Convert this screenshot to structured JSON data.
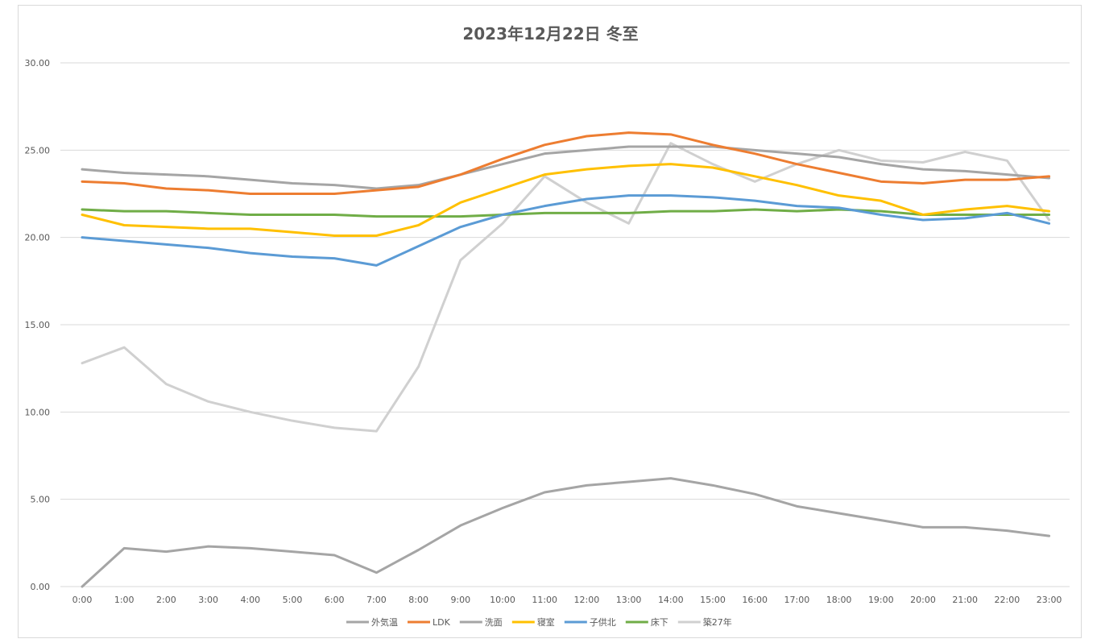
{
  "chart_data": {
    "type": "line",
    "title": "2023年12月22日 冬至",
    "xlabel": "",
    "ylabel": "",
    "ylim": [
      0,
      30
    ],
    "yticks": [
      "0.00",
      "5.00",
      "10.00",
      "15.00",
      "20.00",
      "25.00",
      "30.00"
    ],
    "categories": [
      "0:00",
      "1:00",
      "2:00",
      "3:00",
      "4:00",
      "5:00",
      "6:00",
      "7:00",
      "8:00",
      "9:00",
      "10:00",
      "11:00",
      "12:00",
      "13:00",
      "14:00",
      "15:00",
      "16:00",
      "17:00",
      "18:00",
      "19:00",
      "20:00",
      "21:00",
      "22:00",
      "23:00"
    ],
    "grid": true,
    "legend_position": "bottom",
    "series": [
      {
        "name": "外気温",
        "color": "#a5a5a5",
        "values": [
          0.0,
          2.2,
          2.0,
          2.3,
          2.2,
          2.0,
          1.8,
          0.8,
          2.1,
          3.5,
          4.5,
          5.4,
          5.8,
          6.0,
          6.2,
          5.8,
          5.3,
          4.6,
          4.2,
          3.8,
          3.4,
          3.4,
          3.2,
          2.9
        ]
      },
      {
        "name": "LDK",
        "color": "#ed7d31",
        "values": [
          23.2,
          23.1,
          22.8,
          22.7,
          22.5,
          22.5,
          22.5,
          22.7,
          22.9,
          23.6,
          24.5,
          25.3,
          25.8,
          26.0,
          25.9,
          25.3,
          24.8,
          24.2,
          23.7,
          23.2,
          23.1,
          23.3,
          23.3,
          23.5
        ]
      },
      {
        "name": "洗面",
        "color": "#a5a5a5",
        "values": [
          23.9,
          23.7,
          23.6,
          23.5,
          23.3,
          23.1,
          23.0,
          22.8,
          23.0,
          23.6,
          24.2,
          24.8,
          25.0,
          25.2,
          25.2,
          25.2,
          25.0,
          24.8,
          24.6,
          24.2,
          23.9,
          23.8,
          23.6,
          23.4
        ]
      },
      {
        "name": "寝室",
        "color": "#ffc000",
        "values": [
          21.3,
          20.7,
          20.6,
          20.5,
          20.5,
          20.3,
          20.1,
          20.1,
          20.7,
          22.0,
          22.8,
          23.6,
          23.9,
          24.1,
          24.2,
          24.0,
          23.5,
          23.0,
          22.4,
          22.1,
          21.3,
          21.6,
          21.8,
          21.5
        ]
      },
      {
        "name": "子供北",
        "color": "#5b9bd5",
        "values": [
          20.0,
          19.8,
          19.6,
          19.4,
          19.1,
          18.9,
          18.8,
          18.4,
          19.5,
          20.6,
          21.3,
          21.8,
          22.2,
          22.4,
          22.4,
          22.3,
          22.1,
          21.8,
          21.7,
          21.3,
          21.0,
          21.1,
          21.4,
          20.8
        ]
      },
      {
        "name": "床下",
        "color": "#70ad47",
        "values": [
          21.6,
          21.5,
          21.5,
          21.4,
          21.3,
          21.3,
          21.3,
          21.2,
          21.2,
          21.2,
          21.3,
          21.4,
          21.4,
          21.4,
          21.5,
          21.5,
          21.6,
          21.5,
          21.6,
          21.5,
          21.3,
          21.3,
          21.3,
          21.3
        ]
      },
      {
        "name": "築27年",
        "color": "#d0d0d0",
        "values": [
          12.8,
          13.7,
          11.6,
          10.6,
          10.0,
          9.5,
          9.1,
          8.9,
          12.6,
          18.7,
          20.8,
          23.5,
          22.0,
          20.8,
          25.4,
          24.2,
          23.2,
          24.2,
          25.0,
          24.4,
          24.3,
          24.9,
          24.4,
          21.0
        ]
      }
    ]
  }
}
